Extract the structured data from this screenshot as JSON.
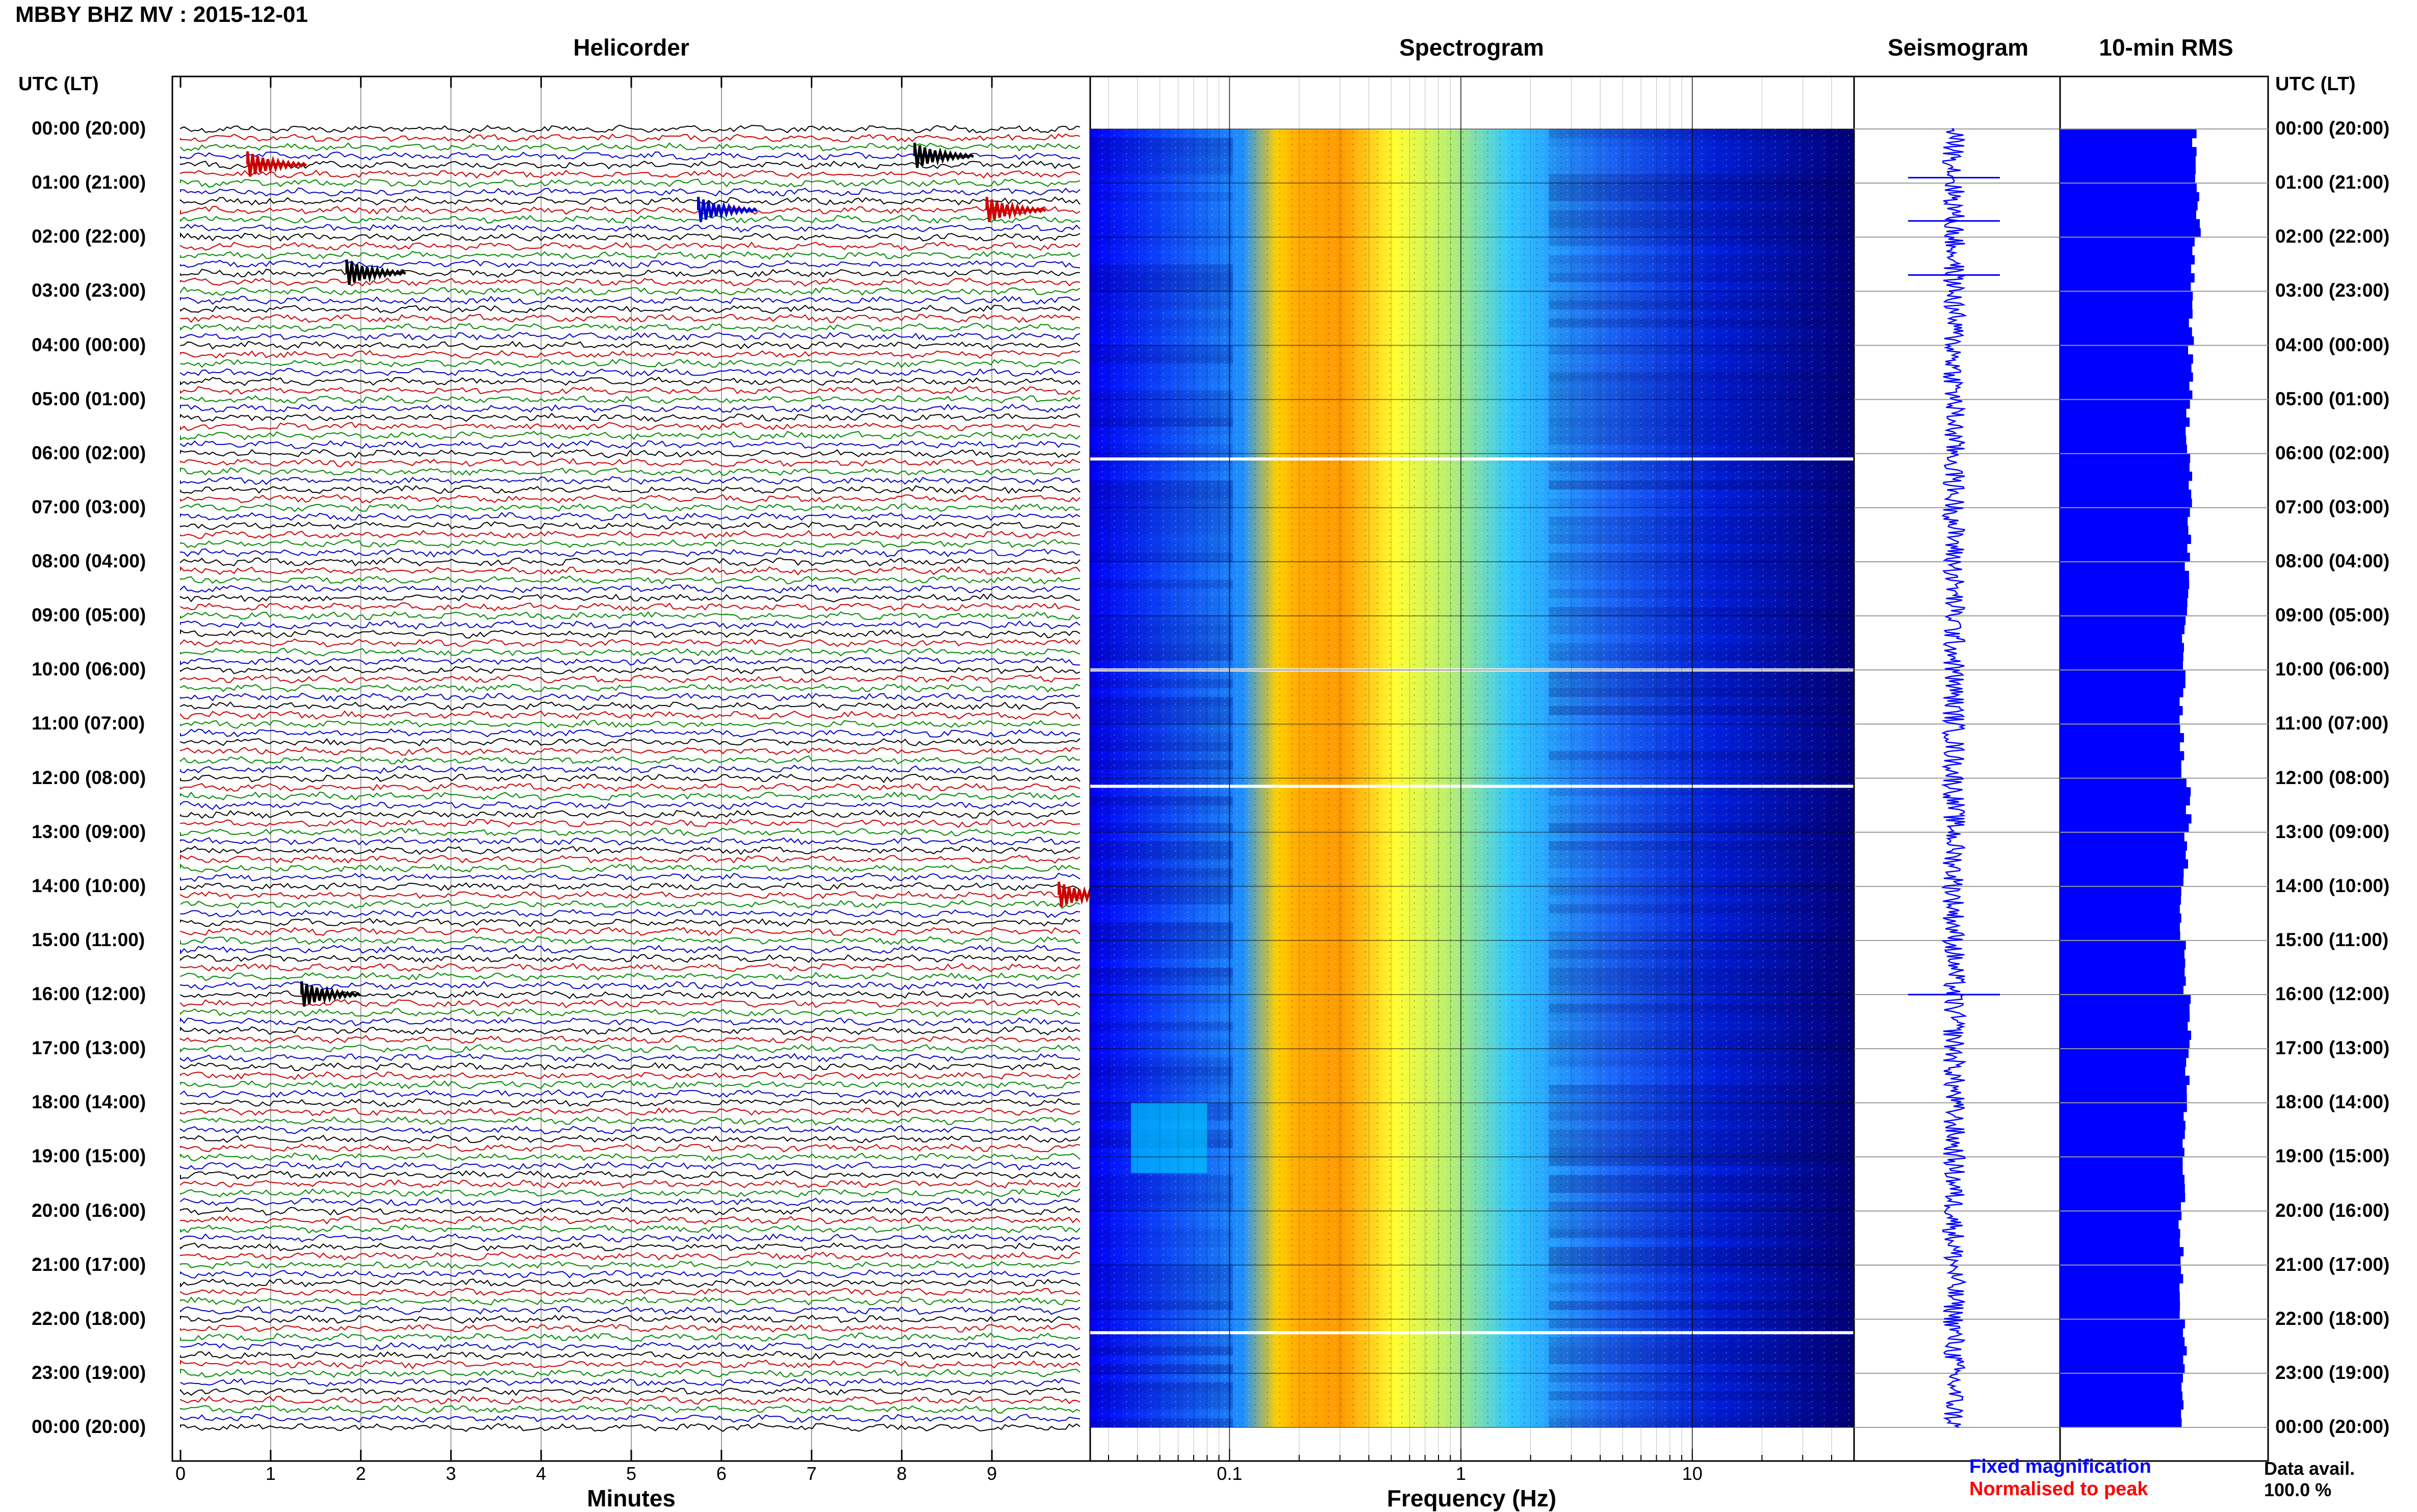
{
  "header": {
    "title": "MBBY BHZ MV : 2015-12-01"
  },
  "panels": {
    "helicorder": "Helicorder",
    "spectrogram": "Spectrogram",
    "seismogram": "Seismogram",
    "rms": "10-min RMS"
  },
  "axes": {
    "utc_left": "UTC (LT)",
    "utc_right": "UTC (LT)",
    "minutes_title": "Minutes",
    "frequency_title": "Frequency (Hz)"
  },
  "legend": {
    "fixed": "Fixed magnification",
    "normalised": "Normalised to peak",
    "fixed_color": "#0000ff",
    "normalised_color": "#ff0000"
  },
  "availability": {
    "label": "Data avail.",
    "value": "100.0 %"
  },
  "colors": {
    "trace_cycle": [
      "#000000",
      "#cc0000",
      "#008800",
      "#0000cc"
    ],
    "seismogram": "#0000ff",
    "rms": "#0000ff"
  },
  "chart_data": [
    {
      "type": "line",
      "name": "helicorder",
      "xlabel": "Minutes",
      "xlim": [
        0,
        10
      ],
      "x_ticks": [
        "0",
        "1",
        "2",
        "3",
        "4",
        "5",
        "6",
        "7",
        "8",
        "9"
      ],
      "y_labels": [
        "00:00 (20:00)",
        "01:00 (21:00)",
        "02:00 (22:00)",
        "03:00 (23:00)",
        "04:00 (00:00)",
        "05:00 (01:00)",
        "06:00 (02:00)",
        "07:00 (03:00)",
        "08:00 (04:00)",
        "09:00 (05:00)",
        "10:00 (06:00)",
        "11:00 (07:00)",
        "12:00 (08:00)",
        "13:00 (09:00)",
        "14:00 (10:00)",
        "15:00 (11:00)",
        "16:00 (12:00)",
        "17:00 (13:00)",
        "18:00 (14:00)",
        "19:00 (15:00)",
        "20:00 (16:00)",
        "21:00 (17:00)",
        "22:00 (18:00)",
        "23:00 (19:00)",
        "00:00 (20:00)"
      ],
      "events": [
        {
          "hour": 0.66,
          "minute": 0.8,
          "color": "#cc0000"
        },
        {
          "hour": 0.5,
          "minute": 8.2,
          "color": "#000000"
        },
        {
          "hour": 1.5,
          "minute": 5.8,
          "color": "#0000cc"
        },
        {
          "hour": 1.5,
          "minute": 9.0,
          "color": "#cc0000"
        },
        {
          "hour": 2.66,
          "minute": 1.9,
          "color": "#000000"
        },
        {
          "hour": 14.16,
          "minute": 9.8,
          "color": "#cc0000"
        },
        {
          "hour": 16.0,
          "minute": 1.4,
          "color": "#000000"
        }
      ]
    },
    {
      "type": "heatmap",
      "name": "spectrogram",
      "xlabel": "Frequency (Hz)",
      "x_scale": "log",
      "xlim": [
        0.025,
        50
      ],
      "x_ticks": [
        "0.1",
        "1",
        "10"
      ],
      "peak_band_hz": [
        0.15,
        0.6
      ],
      "colormap": [
        "#00007a",
        "#0000ff",
        "#1e90ff",
        "#00e0ff",
        "#c8f060",
        "#ffff00",
        "#ff8c00",
        "#ff0000"
      ]
    },
    {
      "type": "line",
      "name": "seismogram",
      "color": "#0000ff",
      "spikes_hours": [
        0.9,
        1.7,
        2.7,
        16.0
      ]
    },
    {
      "type": "bar",
      "name": "10-min RMS",
      "orientation": "horizontal",
      "color": "#0000ff",
      "values": [
        0.88,
        0.9,
        0.87,
        0.86,
        0.85,
        0.84,
        0.86,
        0.84,
        0.83,
        0.81,
        0.8,
        0.8,
        0.84,
        0.82,
        0.8,
        0.82,
        0.84,
        0.83,
        0.82,
        0.81,
        0.79,
        0.8,
        0.82,
        0.81
      ]
    }
  ]
}
